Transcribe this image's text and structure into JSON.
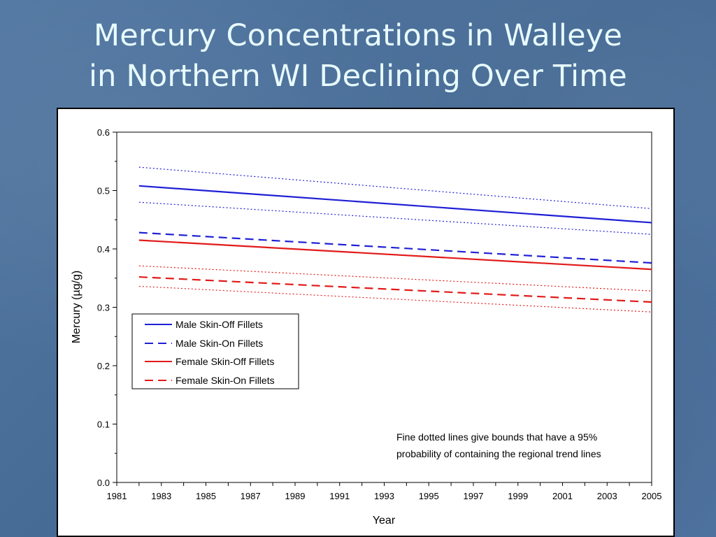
{
  "slide": {
    "title_line1": "Mercury Concentrations in Walleye",
    "title_line2": "in Northern WI Declining Over Time"
  },
  "chart_data": {
    "type": "line",
    "title": "",
    "xlabel": "Year",
    "ylabel": "Mercury (µg/g)",
    "xlim": [
      1981,
      2005
    ],
    "ylim": [
      0.0,
      0.6
    ],
    "x_ticks": [
      "1981",
      "1983",
      "1985",
      "1987",
      "1989",
      "1991",
      "1993",
      "1995",
      "1997",
      "1999",
      "2001",
      "2003",
      "2005"
    ],
    "y_ticks": [
      "0.0",
      "0.1",
      "0.2",
      "0.3",
      "0.4",
      "0.5",
      "0.6"
    ],
    "x": [
      1982,
      2005
    ],
    "series": [
      {
        "name": "Male Skin-Off Fillets",
        "color": "#1f1fd6",
        "style": "solid",
        "values": [
          0.508,
          0.445
        ]
      },
      {
        "name": "Male Skin-On Fillets",
        "color": "#1f1fd6",
        "style": "dashed",
        "values": [
          0.428,
          0.376
        ]
      },
      {
        "name": "Female Skin-Off Fillets",
        "color": "#e21a1a",
        "style": "solid",
        "values": [
          0.415,
          0.365
        ]
      },
      {
        "name": "Female Skin-On Fillets",
        "color": "#e21a1a",
        "style": "dashed",
        "values": [
          0.352,
          0.309
        ]
      }
    ],
    "bounds": [
      {
        "color": "#1f1fd6",
        "style": "dotted",
        "values": [
          0.54,
          0.469
        ]
      },
      {
        "color": "#1f1fd6",
        "style": "dotted",
        "values": [
          0.48,
          0.425
        ]
      },
      {
        "color": "#e21a1a",
        "style": "dotted",
        "values": [
          0.371,
          0.328
        ]
      },
      {
        "color": "#e21a1a",
        "style": "dotted",
        "values": [
          0.336,
          0.292
        ]
      }
    ],
    "legend_position": "middle-left",
    "annotation_line1": "Fine dotted lines give bounds that have a 95%",
    "annotation_line2": "probability of containing the regional trend lines",
    "grid": false
  }
}
